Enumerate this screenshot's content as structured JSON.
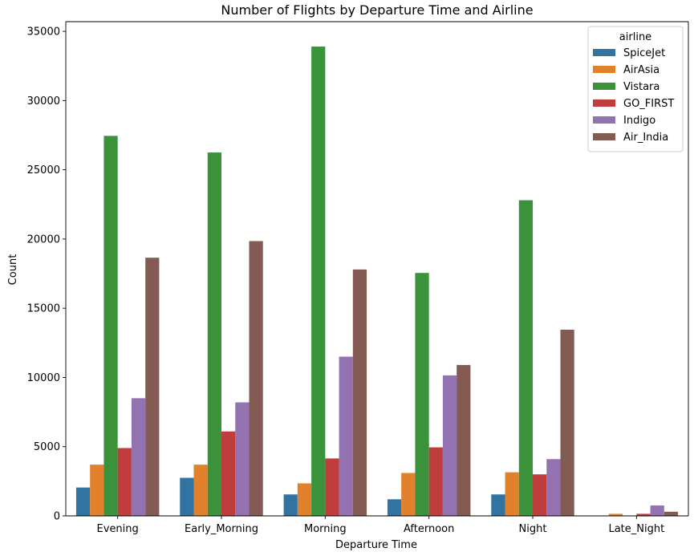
{
  "chart_data": {
    "type": "bar",
    "title": "Number of Flights by Departure Time and Airline",
    "xlabel": "Departure Time",
    "ylabel": "Count",
    "ylim": [
      0,
      35700
    ],
    "yticks": [
      0,
      5000,
      10000,
      15000,
      20000,
      25000,
      30000,
      35000
    ],
    "categories": [
      "Evening",
      "Early_Morning",
      "Morning",
      "Afternoon",
      "Night",
      "Late_Night"
    ],
    "legend_title": "airline",
    "legend_position": "top-right",
    "series": [
      {
        "name": "SpiceJet",
        "color": "#3274a1",
        "values": [
          2050,
          2750,
          1550,
          1200,
          1550,
          0
        ]
      },
      {
        "name": "AirAsia",
        "color": "#e1812c",
        "values": [
          3700,
          3700,
          2350,
          3100,
          3150,
          150
        ]
      },
      {
        "name": "Vistara",
        "color": "#3a923a",
        "values": [
          27450,
          26250,
          33900,
          17550,
          22800,
          0
        ]
      },
      {
        "name": "GO_FIRST",
        "color": "#c03d3e",
        "values": [
          4900,
          6100,
          4150,
          4950,
          3000,
          150
        ]
      },
      {
        "name": "Indigo",
        "color": "#9372b2",
        "values": [
          8500,
          8200,
          11500,
          10150,
          4100,
          750
        ]
      },
      {
        "name": "Air_India",
        "color": "#845b53",
        "values": [
          18650,
          19850,
          17800,
          10900,
          13450,
          300
        ]
      }
    ]
  }
}
